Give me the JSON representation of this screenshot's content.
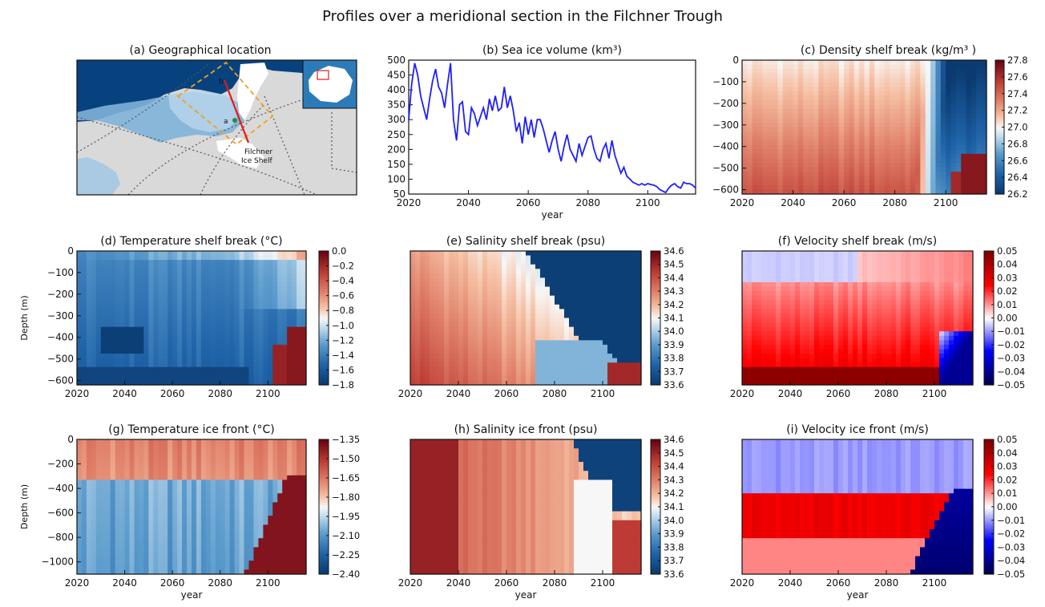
{
  "figure_title": "Profiles over a meridional section in the Filchner Trough",
  "map_panel": {
    "title": "(a) Geographical location",
    "labels": {
      "point_b": "b",
      "point_a": "a",
      "shelf_line1": "Filchner",
      "shelf_line2": "Ice Shelf"
    }
  },
  "colors": {
    "series_line": "#1f1fff",
    "cmap_neg": "#08306b",
    "cmap_mid": "#f7f7f7",
    "cmap_pos": "#67000d",
    "vel_neg": "#000080",
    "vel_pos": "#7f0000",
    "track": "#e41a1c",
    "box": "#f0a020",
    "ocean": "#08427e",
    "land": "#d9d9d9"
  },
  "chart_data": [
    {
      "id": "b",
      "type": "line",
      "title": "(b) Sea ice volume (km³)",
      "xlabel": "year",
      "ylabel": "",
      "xlim": [
        2020,
        2116
      ],
      "ylim": [
        50,
        500
      ],
      "xticks": [
        2020,
        2040,
        2060,
        2080,
        2100
      ],
      "yticks": [
        50,
        100,
        150,
        200,
        250,
        300,
        350,
        400,
        450,
        500
      ],
      "series": [
        {
          "x": [
            2020,
            2021,
            2022,
            2023,
            2024,
            2025,
            2026,
            2027,
            2028,
            2029,
            2030,
            2031,
            2032,
            2033,
            2034,
            2035,
            2036,
            2037,
            2038,
            2039,
            2040,
            2041,
            2042,
            2043,
            2044,
            2045,
            2046,
            2047,
            2048,
            2049,
            2050,
            2051,
            2052,
            2053,
            2054,
            2055,
            2056,
            2057,
            2058,
            2059,
            2060,
            2061,
            2062,
            2063,
            2064,
            2065,
            2066,
            2067,
            2068,
            2069,
            2070,
            2071,
            2072,
            2073,
            2074,
            2075,
            2076,
            2077,
            2078,
            2079,
            2080,
            2081,
            2082,
            2083,
            2084,
            2085,
            2086,
            2087,
            2088,
            2089,
            2090,
            2091,
            2092,
            2093,
            2094,
            2095,
            2096,
            2097,
            2098,
            2099,
            2100,
            2101,
            2102,
            2103,
            2104,
            2105,
            2106,
            2107,
            2108,
            2109,
            2110,
            2111,
            2112,
            2113,
            2114,
            2115,
            2116
          ],
          "y": [
            300,
            420,
            490,
            450,
            380,
            340,
            300,
            370,
            430,
            470,
            410,
            390,
            340,
            420,
            490,
            300,
            230,
            350,
            360,
            260,
            250,
            340,
            320,
            280,
            310,
            340,
            300,
            370,
            330,
            380,
            330,
            340,
            410,
            340,
            380,
            330,
            260,
            290,
            220,
            310,
            250,
            300,
            240,
            300,
            300,
            270,
            230,
            190,
            230,
            260,
            200,
            160,
            210,
            250,
            200,
            180,
            160,
            220,
            180,
            210,
            240,
            245,
            200,
            170,
            160,
            200,
            220,
            170,
            230,
            180,
            150,
            120,
            140,
            110,
            100,
            90,
            85,
            80,
            85,
            80,
            85,
            82,
            80,
            75,
            65,
            60,
            55,
            70,
            80,
            85,
            75,
            70,
            90,
            85,
            85,
            80,
            70
          ]
        }
      ]
    },
    {
      "id": "c",
      "type": "heatmap",
      "title": "(c) Density shelf break (kg/m³ )",
      "xlabel": "",
      "ylabel": "",
      "xlim": [
        2020,
        2116
      ],
      "ylim": [
        -620,
        0
      ],
      "xticks": [
        2020,
        2040,
        2060,
        2080,
        2100
      ],
      "yticks": [
        0,
        -100,
        -200,
        -300,
        -400,
        -500,
        -600
      ],
      "vmin": 26.2,
      "vmax": 27.8,
      "cmap": "RdBu_r",
      "cbar_ticks": [
        "26.2",
        "26.4",
        "26.6",
        "26.8",
        "27.0",
        "27.2",
        "27.4",
        "27.6",
        "27.8"
      ],
      "field": "density"
    },
    {
      "id": "d",
      "type": "heatmap",
      "title": "(d) Temperature shelf break (°C)",
      "xlabel": "",
      "ylabel": "Depth (m)",
      "xlim": [
        2020,
        2116
      ],
      "ylim": [
        -620,
        0
      ],
      "xticks": [
        2020,
        2040,
        2060,
        2080,
        2100
      ],
      "yticks": [
        0,
        -100,
        -200,
        -300,
        -400,
        -500,
        -600
      ],
      "vmin": -1.8,
      "vmax": 0.0,
      "cmap": "RdBu_r",
      "cbar_ticks": [
        "−1.8",
        "−1.6",
        "−1.4",
        "−1.2",
        "−1.0",
        "−0.8",
        "−0.6",
        "−0.4",
        "−0.2",
        "0.0"
      ],
      "field": "temp_sb"
    },
    {
      "id": "e",
      "type": "heatmap",
      "title": "(e) Salinity shelf break (psu)",
      "xlabel": "",
      "ylabel": "",
      "xlim": [
        2020,
        2116
      ],
      "ylim": [
        -620,
        0
      ],
      "xticks": [
        2020,
        2040,
        2060,
        2080,
        2100
      ],
      "yticks": [],
      "vmin": 33.6,
      "vmax": 34.6,
      "cmap": "RdBu_r",
      "cbar_ticks": [
        "33.6",
        "33.7",
        "33.8",
        "33.9",
        "34.0",
        "34.1",
        "34.2",
        "34.3",
        "34.4",
        "34.5",
        "34.6"
      ],
      "field": "sal_sb"
    },
    {
      "id": "f",
      "type": "heatmap",
      "title": "(f) Velocity shelf break (m/s)",
      "xlabel": "",
      "ylabel": "",
      "xlim": [
        2020,
        2116
      ],
      "ylim": [
        -620,
        0
      ],
      "xticks": [
        2020,
        2040,
        2060,
        2080,
        2100
      ],
      "yticks": [],
      "vmin": -0.05,
      "vmax": 0.05,
      "cmap": "seismic",
      "cbar_ticks": [
        "−0.05",
        "−0.04",
        "−0.03",
        "−0.02",
        "−0.01",
        "0.00",
        "0.01",
        "0.02",
        "0.03",
        "0.04",
        "0.05"
      ],
      "field": "vel_sb"
    },
    {
      "id": "g",
      "type": "heatmap",
      "title": "(g) Temperature ice front (°C)",
      "xlabel": "year",
      "ylabel": "Depth (m)",
      "xlim": [
        2020,
        2116
      ],
      "ylim": [
        -1100,
        0
      ],
      "xticks": [
        2020,
        2040,
        2060,
        2080,
        2100
      ],
      "yticks": [
        0,
        -200,
        -400,
        -600,
        -800,
        -1000
      ],
      "vmin": -2.45,
      "vmax": -1.3,
      "cmap": "RdBu_r",
      "cbar_ticks": [
        "−2.40",
        "−2.25",
        "−2.10",
        "−1.95",
        "−1.80",
        "−1.65",
        "−1.50",
        "−1.35"
      ],
      "field": "temp_if"
    },
    {
      "id": "h",
      "type": "heatmap",
      "title": "(h) Salinity ice front (psu)",
      "xlabel": "year",
      "ylabel": "",
      "xlim": [
        2020,
        2116
      ],
      "ylim": [
        -1100,
        0
      ],
      "xticks": [
        2020,
        2040,
        2060,
        2080,
        2100
      ],
      "yticks": [],
      "vmin": 33.6,
      "vmax": 34.6,
      "cmap": "RdBu_r",
      "cbar_ticks": [
        "33.6",
        "33.7",
        "33.8",
        "33.9",
        "34.0",
        "34.1",
        "34.2",
        "34.3",
        "34.4",
        "34.5",
        "34.6"
      ],
      "field": "sal_if"
    },
    {
      "id": "i",
      "type": "heatmap",
      "title": "(i) Velocity ice front (m/s)",
      "xlabel": "year",
      "ylabel": "",
      "xlim": [
        2020,
        2116
      ],
      "ylim": [
        -1100,
        0
      ],
      "xticks": [
        2020,
        2040,
        2060,
        2080,
        2100
      ],
      "yticks": [],
      "vmin": -0.05,
      "vmax": 0.05,
      "cmap": "seismic",
      "cbar_ticks": [
        "−0.05",
        "−0.04",
        "−0.03",
        "−0.02",
        "−0.01",
        "0.00",
        "0.01",
        "0.02",
        "0.03",
        "0.04",
        "0.05"
      ],
      "field": "vel_if"
    }
  ]
}
